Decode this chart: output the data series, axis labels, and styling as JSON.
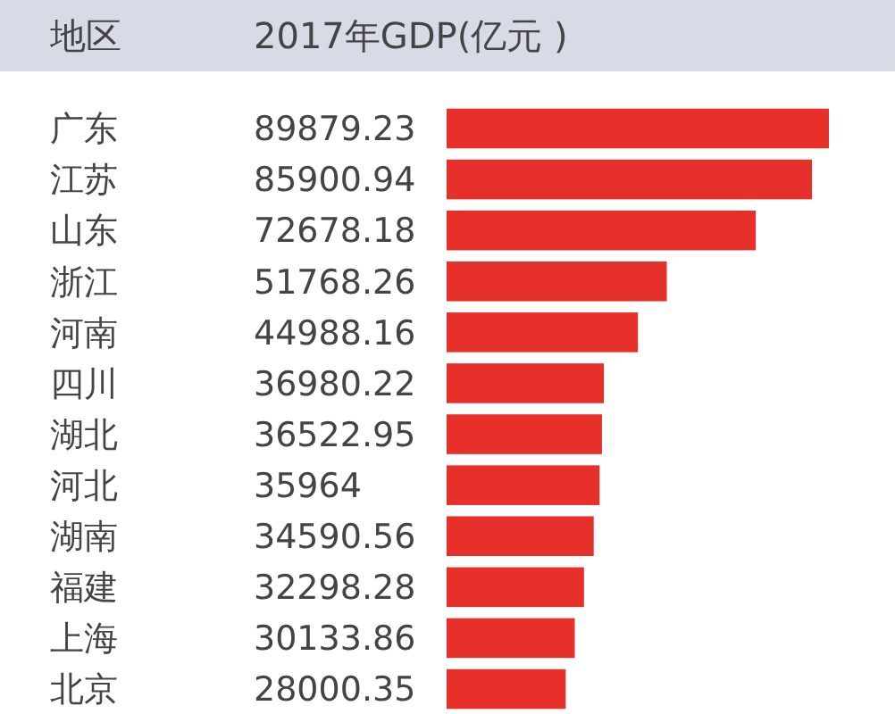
{
  "chart_data": {
    "type": "bar",
    "orientation": "horizontal",
    "ylabel": "地区",
    "xlabel": "2017年GDP(亿元 )",
    "categories": [
      "广东",
      "江苏",
      "山东",
      "浙江",
      "河南",
      "四川",
      "湖北",
      "河北",
      "湖南",
      "福建",
      "上海",
      "北京"
    ],
    "values": [
      89879.23,
      85900.94,
      72678.18,
      51768.26,
      44988.16,
      36980.22,
      36522.95,
      35964,
      34590.56,
      32298.28,
      30133.86,
      28000.35
    ],
    "color": "#e8302a",
    "data_labels": true
  }
}
